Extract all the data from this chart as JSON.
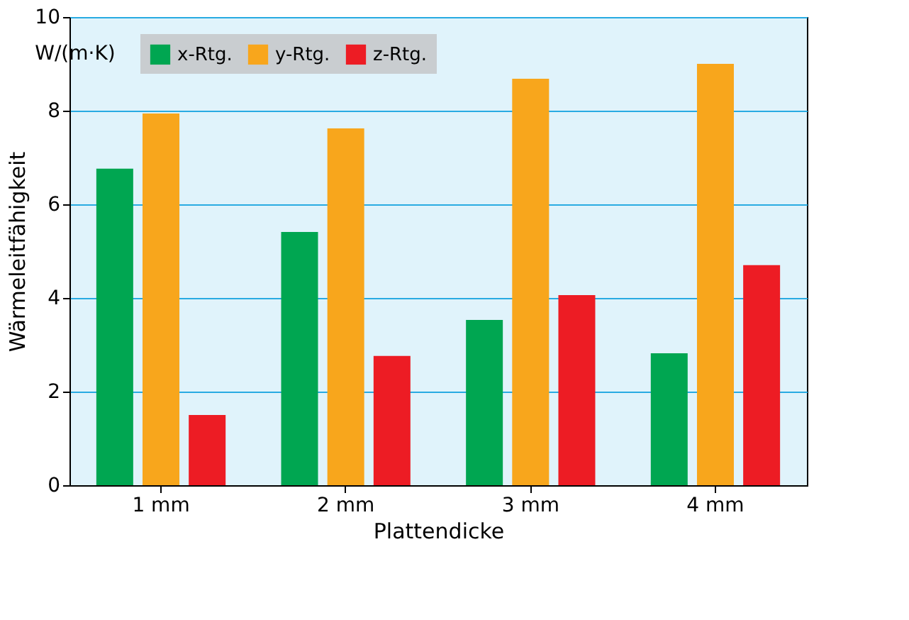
{
  "chart_data": {
    "type": "bar",
    "categories": [
      "1 mm",
      "2 mm",
      "3 mm",
      "4 mm"
    ],
    "series": [
      {
        "name": "x-Rtg.",
        "color": "#00a651",
        "values": [
          6.76,
          5.41,
          3.53,
          2.82
        ]
      },
      {
        "name": "y-Rtg.",
        "color": "#f8a61c",
        "values": [
          7.94,
          7.62,
          8.68,
          9.0
        ]
      },
      {
        "name": "z-Rtg.",
        "color": "#ed1c24",
        "values": [
          1.5,
          2.76,
          4.06,
          4.7
        ]
      }
    ],
    "xlabel": "Plattendicke",
    "ylabel": "Wärmeleitfähigkeit",
    "annotations": [
      "W/(m·K)"
    ],
    "ylim": [
      0,
      10
    ],
    "yticks": [
      0,
      2,
      4,
      6,
      8,
      10
    ],
    "grid": "y",
    "legend": "top left"
  }
}
